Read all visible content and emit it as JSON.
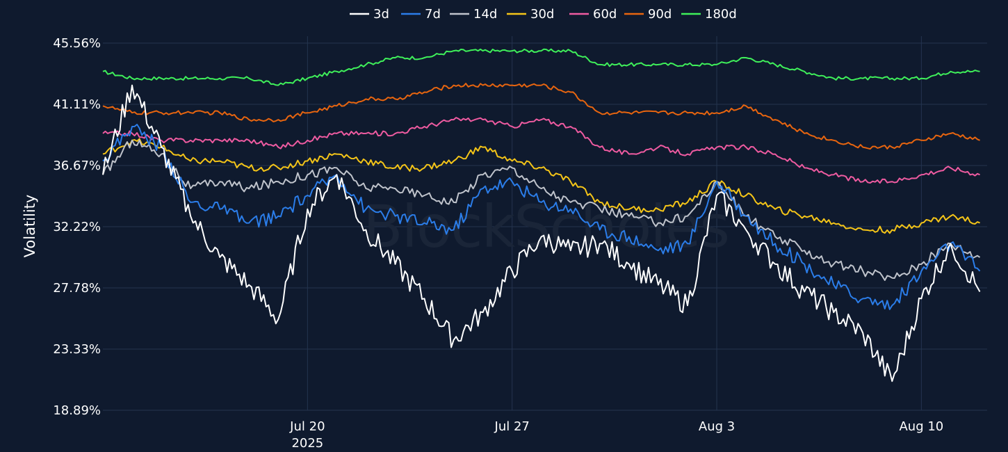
{
  "chart_data": {
    "type": "line",
    "ylabel": "Volatility",
    "y_ticks": [
      "45.56%",
      "41.11%",
      "36.67%",
      "32.22%",
      "27.78%",
      "23.33%",
      "18.89%"
    ],
    "ylim": [
      18.89,
      45.56
    ],
    "x_ticks": [
      {
        "label": "Jul 20",
        "sublabel": "2025",
        "date": "2025-07-20"
      },
      {
        "label": "Jul 27",
        "sublabel": "",
        "date": "2025-07-27"
      },
      {
        "label": "Aug 3",
        "sublabel": "",
        "date": "2025-08-03"
      },
      {
        "label": "Aug 10",
        "sublabel": "",
        "date": "2025-08-10"
      }
    ],
    "xlim": [
      "2025-07-13",
      "2025-08-12T06:00"
    ],
    "grid": true,
    "legend_position": "top-center",
    "watermark": "BlockScholes",
    "series": [
      {
        "name": "3d",
        "color": "#ffffff",
        "x": [
          "2025-07-13",
          "2025-07-14",
          "2025-07-15",
          "2025-07-16",
          "2025-07-17",
          "2025-07-18",
          "2025-07-19",
          "2025-07-20",
          "2025-07-21",
          "2025-07-22",
          "2025-07-23",
          "2025-07-24",
          "2025-07-25",
          "2025-07-26",
          "2025-07-27",
          "2025-07-28",
          "2025-07-29",
          "2025-07-30",
          "2025-07-31",
          "2025-08-01",
          "2025-08-02",
          "2025-08-03",
          "2025-08-04",
          "2025-08-05",
          "2025-08-06",
          "2025-08-07",
          "2025-08-08",
          "2025-08-09",
          "2025-08-10",
          "2025-08-11",
          "2025-08-12"
        ],
        "values": [
          36.0,
          42.5,
          38.0,
          33.0,
          30.0,
          28.0,
          25.5,
          33.5,
          36.0,
          32.0,
          29.5,
          27.0,
          24.0,
          26.0,
          29.0,
          31.5,
          30.5,
          31.0,
          29.5,
          28.0,
          26.5,
          34.5,
          32.0,
          29.5,
          27.5,
          26.0,
          24.5,
          21.0,
          27.0,
          31.0,
          27.5
        ]
      },
      {
        "name": "7d",
        "color": "#2b7de9",
        "x": [
          "2025-07-13",
          "2025-07-14",
          "2025-07-15",
          "2025-07-16",
          "2025-07-17",
          "2025-07-18",
          "2025-07-19",
          "2025-07-20",
          "2025-07-21",
          "2025-07-22",
          "2025-07-23",
          "2025-07-24",
          "2025-07-25",
          "2025-07-26",
          "2025-07-27",
          "2025-07-28",
          "2025-07-29",
          "2025-07-30",
          "2025-07-31",
          "2025-08-01",
          "2025-08-02",
          "2025-08-03",
          "2025-08-04",
          "2025-08-05",
          "2025-08-06",
          "2025-08-07",
          "2025-08-08",
          "2025-08-09",
          "2025-08-10",
          "2025-08-11",
          "2025-08-12"
        ],
        "values": [
          37.0,
          39.5,
          38.0,
          34.0,
          33.5,
          32.5,
          33.0,
          34.5,
          36.0,
          33.5,
          33.0,
          32.5,
          32.0,
          35.0,
          35.5,
          34.0,
          33.5,
          32.0,
          31.5,
          30.5,
          31.0,
          35.5,
          33.0,
          31.0,
          29.5,
          28.0,
          27.0,
          26.5,
          29.0,
          31.0,
          29.0
        ]
      },
      {
        "name": "14d",
        "color": "#c0c4cc",
        "x": [
          "2025-07-13",
          "2025-07-14",
          "2025-07-15",
          "2025-07-16",
          "2025-07-17",
          "2025-07-18",
          "2025-07-19",
          "2025-07-20",
          "2025-07-21",
          "2025-07-22",
          "2025-07-23",
          "2025-07-24",
          "2025-07-25",
          "2025-07-26",
          "2025-07-27",
          "2025-07-28",
          "2025-07-29",
          "2025-07-30",
          "2025-07-31",
          "2025-08-01",
          "2025-08-02",
          "2025-08-03",
          "2025-08-04",
          "2025-08-05",
          "2025-08-06",
          "2025-08-07",
          "2025-08-08",
          "2025-08-09",
          "2025-08-10",
          "2025-08-11",
          "2025-08-12"
        ],
        "values": [
          36.0,
          38.5,
          37.5,
          35.0,
          35.5,
          35.0,
          35.5,
          36.0,
          36.5,
          35.0,
          35.0,
          34.5,
          34.0,
          36.0,
          36.5,
          35.0,
          34.0,
          33.5,
          33.0,
          32.5,
          33.0,
          35.5,
          33.0,
          31.5,
          30.5,
          29.5,
          29.0,
          28.5,
          29.5,
          31.0,
          30.0
        ]
      },
      {
        "name": "30d",
        "color": "#f5c518",
        "x": [
          "2025-07-13",
          "2025-07-14",
          "2025-07-15",
          "2025-07-16",
          "2025-07-17",
          "2025-07-18",
          "2025-07-19",
          "2025-07-20",
          "2025-07-21",
          "2025-07-22",
          "2025-07-23",
          "2025-07-24",
          "2025-07-25",
          "2025-07-26",
          "2025-07-27",
          "2025-07-28",
          "2025-07-29",
          "2025-07-30",
          "2025-07-31",
          "2025-08-01",
          "2025-08-02",
          "2025-08-03",
          "2025-08-04",
          "2025-08-05",
          "2025-08-06",
          "2025-08-07",
          "2025-08-08",
          "2025-08-09",
          "2025-08-10",
          "2025-08-11",
          "2025-08-12"
        ],
        "values": [
          37.5,
          38.5,
          38.0,
          37.0,
          37.0,
          36.5,
          36.5,
          37.0,
          37.5,
          37.0,
          36.5,
          36.5,
          37.0,
          38.0,
          37.0,
          36.5,
          35.5,
          34.0,
          33.5,
          33.5,
          34.0,
          35.5,
          34.5,
          33.5,
          33.0,
          32.5,
          32.0,
          32.0,
          32.5,
          33.0,
          32.5
        ]
      },
      {
        "name": "60d",
        "color": "#ef5ba1",
        "x": [
          "2025-07-13",
          "2025-07-14",
          "2025-07-15",
          "2025-07-16",
          "2025-07-17",
          "2025-07-18",
          "2025-07-19",
          "2025-07-20",
          "2025-07-21",
          "2025-07-22",
          "2025-07-23",
          "2025-07-24",
          "2025-07-25",
          "2025-07-26",
          "2025-07-27",
          "2025-07-28",
          "2025-07-29",
          "2025-07-30",
          "2025-07-31",
          "2025-08-01",
          "2025-08-02",
          "2025-08-03",
          "2025-08-04",
          "2025-08-05",
          "2025-08-06",
          "2025-08-07",
          "2025-08-08",
          "2025-08-09",
          "2025-08-10",
          "2025-08-11",
          "2025-08-12"
        ],
        "values": [
          39.0,
          39.0,
          38.5,
          38.5,
          38.5,
          38.5,
          38.0,
          38.5,
          39.0,
          39.0,
          39.0,
          39.5,
          40.0,
          40.0,
          39.5,
          40.0,
          39.5,
          38.0,
          37.5,
          38.0,
          37.5,
          38.0,
          38.0,
          37.5,
          36.5,
          36.0,
          35.5,
          35.5,
          36.0,
          36.5,
          36.0
        ]
      },
      {
        "name": "90d",
        "color": "#e8650f",
        "x": [
          "2025-07-13",
          "2025-07-14",
          "2025-07-15",
          "2025-07-16",
          "2025-07-17",
          "2025-07-18",
          "2025-07-19",
          "2025-07-20",
          "2025-07-21",
          "2025-07-22",
          "2025-07-23",
          "2025-07-24",
          "2025-07-25",
          "2025-07-26",
          "2025-07-27",
          "2025-07-28",
          "2025-07-29",
          "2025-07-30",
          "2025-07-31",
          "2025-08-01",
          "2025-08-02",
          "2025-08-03",
          "2025-08-04",
          "2025-08-05",
          "2025-08-06",
          "2025-08-07",
          "2025-08-08",
          "2025-08-09",
          "2025-08-10",
          "2025-08-11",
          "2025-08-12"
        ],
        "values": [
          41.0,
          40.5,
          40.5,
          40.5,
          40.5,
          40.0,
          40.0,
          40.5,
          41.0,
          41.5,
          41.5,
          42.0,
          42.5,
          42.5,
          42.5,
          42.5,
          42.0,
          40.5,
          40.5,
          40.5,
          40.5,
          40.5,
          41.0,
          40.0,
          39.0,
          38.5,
          38.0,
          38.0,
          38.5,
          39.0,
          38.5
        ]
      },
      {
        "name": "180d",
        "color": "#3ff05a",
        "x": [
          "2025-07-13",
          "2025-07-14",
          "2025-07-15",
          "2025-07-16",
          "2025-07-17",
          "2025-07-18",
          "2025-07-19",
          "2025-07-20",
          "2025-07-21",
          "2025-07-22",
          "2025-07-23",
          "2025-07-24",
          "2025-07-25",
          "2025-07-26",
          "2025-07-27",
          "2025-07-28",
          "2025-07-29",
          "2025-07-30",
          "2025-07-31",
          "2025-08-01",
          "2025-08-02",
          "2025-08-03",
          "2025-08-04",
          "2025-08-05",
          "2025-08-06",
          "2025-08-07",
          "2025-08-08",
          "2025-08-09",
          "2025-08-10",
          "2025-08-11",
          "2025-08-12"
        ],
        "values": [
          43.5,
          43.0,
          43.0,
          43.0,
          43.0,
          43.0,
          42.5,
          43.0,
          43.5,
          44.0,
          44.5,
          44.5,
          45.0,
          45.0,
          45.0,
          45.0,
          45.0,
          44.0,
          44.0,
          44.0,
          44.0,
          44.0,
          44.5,
          44.0,
          43.5,
          43.0,
          43.0,
          43.0,
          43.0,
          43.5,
          43.5
        ]
      }
    ]
  }
}
